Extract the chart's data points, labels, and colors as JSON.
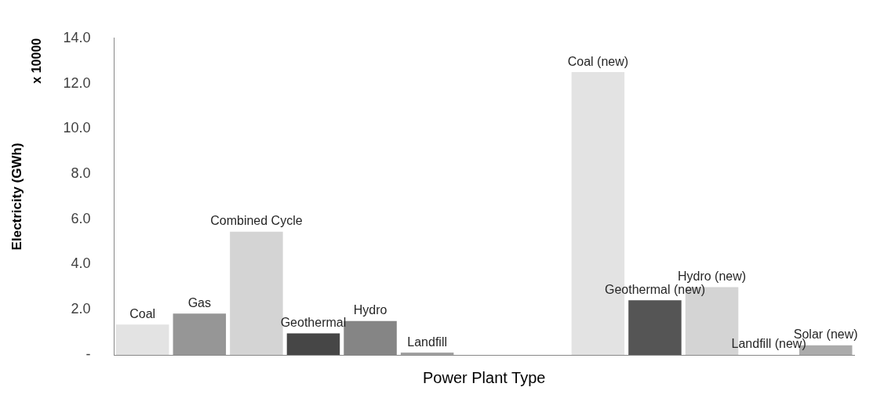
{
  "chart_data": {
    "type": "bar",
    "xlabel": "Power Plant Type",
    "ylabel": "Electricity (GWh)",
    "annotations": [
      "x 10000"
    ],
    "categories": [
      null,
      null,
      null,
      null,
      null,
      null,
      null,
      null,
      null,
      null,
      null,
      null,
      null
    ],
    "series": [
      {
        "name": "Coal",
        "color": "#e3e3e3",
        "values": [
          1.34,
          null,
          null,
          null,
          null,
          null,
          null,
          null,
          null,
          null,
          null,
          null,
          null
        ]
      },
      {
        "name": "Gas",
        "color": "#969696",
        "values": [
          null,
          1.83,
          null,
          null,
          null,
          null,
          null,
          null,
          null,
          null,
          null,
          null,
          null
        ]
      },
      {
        "name": "Combined Cycle",
        "color": "#d4d4d4",
        "values": [
          null,
          null,
          5.45,
          null,
          null,
          null,
          null,
          null,
          null,
          null,
          null,
          null,
          null
        ]
      },
      {
        "name": "Geothermal",
        "color": "#464646",
        "values": [
          null,
          null,
          null,
          0.95,
          null,
          null,
          null,
          null,
          null,
          null,
          null,
          null,
          null
        ]
      },
      {
        "name": "Hydro",
        "color": "#858585",
        "values": [
          null,
          null,
          null,
          null,
          1.5,
          null,
          null,
          null,
          null,
          null,
          null,
          null,
          null
        ]
      },
      {
        "name": "Landfill",
        "color": "#a0a0a0",
        "values": [
          null,
          null,
          null,
          null,
          null,
          0.1,
          null,
          null,
          null,
          null,
          null,
          null,
          null
        ]
      },
      {
        "name": "Coal (new)",
        "color": "#e3e3e3",
        "values": [
          null,
          null,
          null,
          null,
          null,
          null,
          null,
          null,
          12.5,
          null,
          null,
          null,
          null
        ]
      },
      {
        "name": "Geothermal (new)",
        "color": "#555555",
        "values": [
          null,
          null,
          null,
          null,
          null,
          null,
          null,
          null,
          null,
          2.42,
          null,
          null,
          null
        ]
      },
      {
        "name": "Hydro (new)",
        "color": "#d4d4d4",
        "values": [
          null,
          null,
          null,
          null,
          null,
          null,
          null,
          null,
          null,
          null,
          3.0,
          null,
          null
        ]
      },
      {
        "name": "Landfill (new)",
        "values": [
          null,
          null,
          null,
          null,
          null,
          null,
          null,
          null,
          null,
          null,
          null,
          0,
          null
        ]
      },
      {
        "name": "Solar (new)",
        "color": "#ababab",
        "values": [
          null,
          null,
          null,
          null,
          null,
          null,
          null,
          null,
          null,
          null,
          null,
          null,
          0.42
        ]
      }
    ],
    "ylim": [
      0,
      14
    ],
    "yticks": [
      {
        "value": 0,
        "label": "-"
      },
      {
        "value": 2,
        "label": "2.0"
      },
      {
        "value": 4,
        "label": "4.0"
      },
      {
        "value": 6,
        "label": "6.0"
      },
      {
        "value": 8,
        "label": "8.0"
      },
      {
        "value": 10,
        "label": "10.0"
      },
      {
        "value": 12,
        "label": "12.0"
      },
      {
        "value": 14,
        "label": "14.0"
      }
    ],
    "grid": false,
    "legend": false
  }
}
